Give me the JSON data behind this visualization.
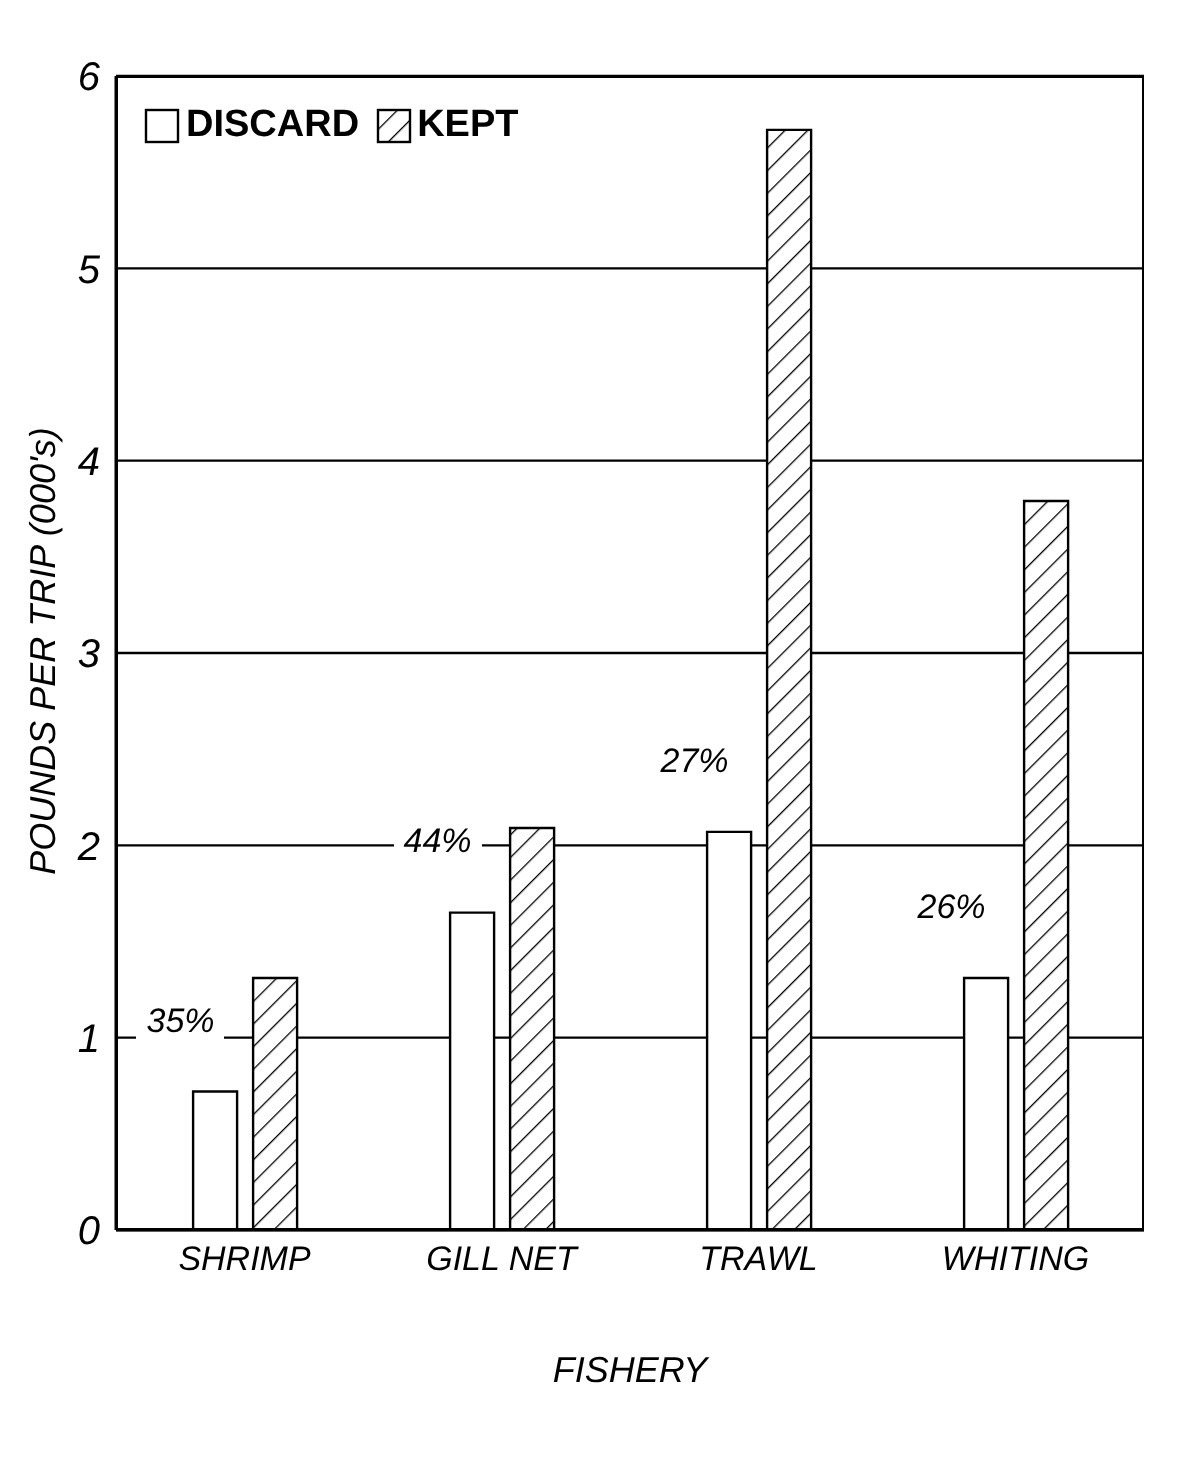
{
  "chart_data": {
    "type": "bar",
    "xlabel": "FISHERY",
    "ylabel": "POUNDS PER TRIP (000's)",
    "categories": [
      "SHRIMP",
      "GILL NET",
      "TRAWL",
      "WHITING"
    ],
    "series": [
      {
        "name": "DISCARD",
        "color": "#ffffff",
        "values": [
          0.72,
          1.65,
          2.07,
          1.31
        ]
      },
      {
        "name": "KEPT",
        "color": "#000000",
        "values": [
          1.31,
          2.09,
          5.72,
          3.79
        ]
      }
    ],
    "ylim": [
      0,
      6
    ],
    "yticks": [
      0,
      1,
      2,
      3,
      4,
      5,
      6
    ],
    "grid": "y",
    "legend": "top left",
    "annotations": [
      "35%",
      "44%",
      "27%",
      "26%"
    ]
  }
}
